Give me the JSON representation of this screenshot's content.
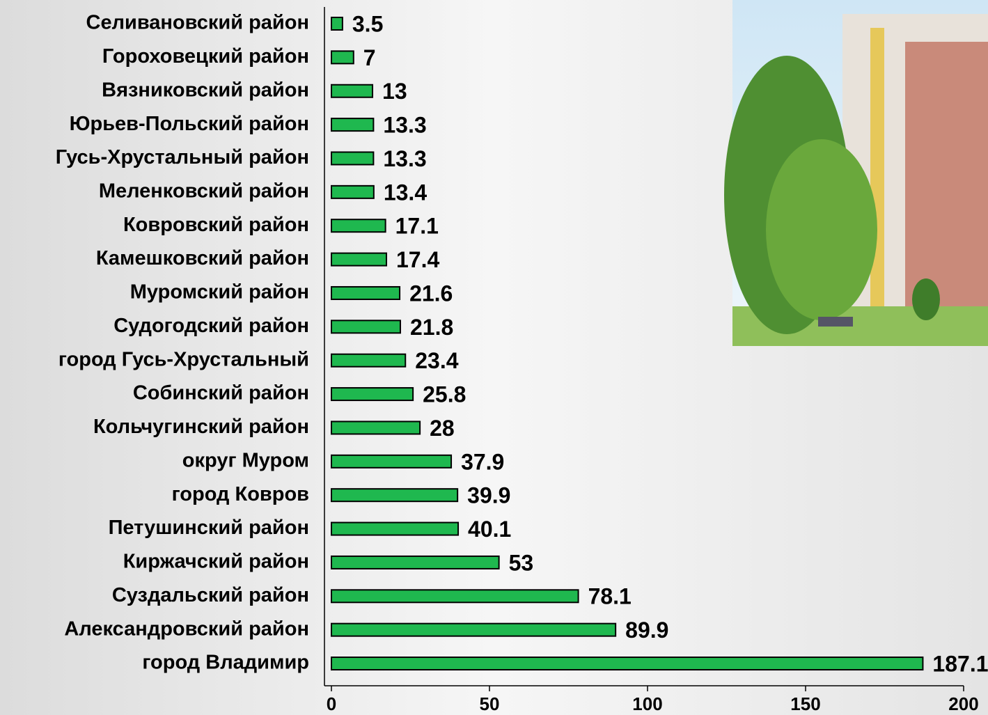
{
  "chart_data": {
    "type": "barh",
    "categories": [
      "Селивановский район",
      "Гороховецкий район",
      "Вязниковский район",
      "Юрьев-Польский район",
      "Гусь-Хрустальный район",
      "Меленковский район",
      "Ковровский район",
      "Камешковский район",
      "Муромский район",
      "Судогодский район",
      "город Гусь-Хрустальный",
      "Собинский район",
      "Кольчугинский район",
      "округ Муром",
      "город Ковров",
      "Петушинский район",
      "Киржачский район",
      "Суздальский район",
      "Александровский район",
      "город Владимир"
    ],
    "values": [
      3.5,
      7,
      13,
      13.3,
      13.3,
      13.4,
      17.1,
      17.4,
      21.6,
      21.8,
      23.4,
      25.8,
      28,
      37.9,
      39.9,
      40.1,
      53,
      78.1,
      89.9,
      187.1
    ],
    "color": "#1fb84f",
    "xlim": [
      0,
      200
    ],
    "xticks": [
      0,
      50,
      100,
      150,
      200
    ]
  }
}
